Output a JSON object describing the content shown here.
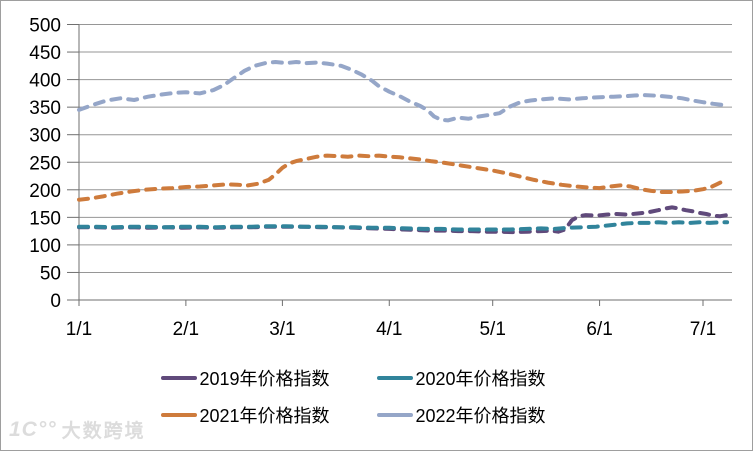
{
  "watermark": {
    "logo_text": "1C°°",
    "brand": "大数跨境"
  },
  "chart_data": {
    "type": "line",
    "title": "",
    "line_style": "dashed",
    "grid": true,
    "legend_position": "bottom",
    "xlabel": "",
    "ylabel": "",
    "x_tick_labels": [
      "1/1",
      "2/1",
      "3/1",
      "4/1",
      "5/1",
      "6/1",
      "7/1"
    ],
    "x_tick_days": [
      1,
      32,
      60,
      91,
      121,
      152,
      182
    ],
    "x_domain_days": [
      1,
      189
    ],
    "ylim": [
      0,
      500
    ],
    "y_step": 50,
    "colors": {
      "grid": "#969696",
      "axis": "#6f6f6f"
    },
    "legend_rows": [
      [
        0,
        1
      ],
      [
        2,
        3
      ]
    ],
    "series": [
      {
        "name": "2019年价格指数",
        "color": "#604A7B",
        "points": [
          [
            1,
            132
          ],
          [
            6,
            132
          ],
          [
            11,
            131
          ],
          [
            16,
            132
          ],
          [
            21,
            131
          ],
          [
            26,
            132
          ],
          [
            31,
            131
          ],
          [
            36,
            132
          ],
          [
            41,
            131
          ],
          [
            46,
            132
          ],
          [
            51,
            132
          ],
          [
            56,
            133
          ],
          [
            61,
            133
          ],
          [
            66,
            133
          ],
          [
            71,
            132
          ],
          [
            76,
            132
          ],
          [
            81,
            131
          ],
          [
            86,
            130
          ],
          [
            91,
            129
          ],
          [
            95,
            128
          ],
          [
            99,
            127
          ],
          [
            103,
            126
          ],
          [
            107,
            126
          ],
          [
            111,
            125
          ],
          [
            115,
            125
          ],
          [
            119,
            124
          ],
          [
            123,
            124
          ],
          [
            127,
            123
          ],
          [
            131,
            124
          ],
          [
            135,
            125
          ],
          [
            138,
            126
          ],
          [
            140,
            124
          ],
          [
            142,
            128
          ],
          [
            144,
            145
          ],
          [
            146,
            152
          ],
          [
            148,
            154
          ],
          [
            151,
            153
          ],
          [
            154,
            155
          ],
          [
            157,
            156
          ],
          [
            160,
            155
          ],
          [
            163,
            157
          ],
          [
            166,
            159
          ],
          [
            169,
            163
          ],
          [
            171,
            166
          ],
          [
            173,
            168
          ],
          [
            175,
            166
          ],
          [
            177,
            163
          ],
          [
            179,
            161
          ],
          [
            181,
            158
          ],
          [
            183,
            156
          ],
          [
            185,
            153
          ],
          [
            187,
            152
          ],
          [
            189,
            154
          ]
        ]
      },
      {
        "name": "2020年价格指数",
        "color": "#31849B",
        "points": [
          [
            1,
            133
          ],
          [
            6,
            133
          ],
          [
            11,
            132
          ],
          [
            16,
            133
          ],
          [
            21,
            133
          ],
          [
            26,
            132
          ],
          [
            31,
            133
          ],
          [
            36,
            133
          ],
          [
            41,
            132
          ],
          [
            46,
            133
          ],
          [
            51,
            133
          ],
          [
            56,
            134
          ],
          [
            61,
            134
          ],
          [
            66,
            133
          ],
          [
            71,
            133
          ],
          [
            76,
            132
          ],
          [
            81,
            132
          ],
          [
            86,
            131
          ],
          [
            91,
            131
          ],
          [
            96,
            130
          ],
          [
            101,
            129
          ],
          [
            106,
            129
          ],
          [
            111,
            128
          ],
          [
            116,
            128
          ],
          [
            121,
            128
          ],
          [
            126,
            128
          ],
          [
            131,
            129
          ],
          [
            135,
            130
          ],
          [
            139,
            129
          ],
          [
            143,
            131
          ],
          [
            147,
            132
          ],
          [
            151,
            133
          ],
          [
            154,
            135
          ],
          [
            157,
            137
          ],
          [
            160,
            139
          ],
          [
            163,
            140
          ],
          [
            166,
            140
          ],
          [
            169,
            141
          ],
          [
            172,
            140
          ],
          [
            175,
            141
          ],
          [
            178,
            140
          ],
          [
            181,
            141
          ],
          [
            184,
            140
          ],
          [
            187,
            141
          ],
          [
            189,
            141
          ]
        ]
      },
      {
        "name": "2021年价格指数",
        "color": "#CE7B3C",
        "points": [
          [
            1,
            182
          ],
          [
            4,
            184
          ],
          [
            8,
            188
          ],
          [
            12,
            193
          ],
          [
            16,
            197
          ],
          [
            20,
            200
          ],
          [
            24,
            202
          ],
          [
            28,
            203
          ],
          [
            32,
            205
          ],
          [
            36,
            206
          ],
          [
            40,
            208
          ],
          [
            44,
            210
          ],
          [
            47,
            209
          ],
          [
            50,
            208
          ],
          [
            53,
            211
          ],
          [
            56,
            218
          ],
          [
            58,
            228
          ],
          [
            60,
            240
          ],
          [
            62,
            248
          ],
          [
            64,
            252
          ],
          [
            67,
            256
          ],
          [
            70,
            260
          ],
          [
            73,
            262
          ],
          [
            76,
            261
          ],
          [
            79,
            260
          ],
          [
            82,
            262
          ],
          [
            85,
            261
          ],
          [
            88,
            262
          ],
          [
            91,
            260
          ],
          [
            94,
            259
          ],
          [
            97,
            257
          ],
          [
            100,
            255
          ],
          [
            103,
            252
          ],
          [
            106,
            250
          ],
          [
            109,
            247
          ],
          [
            112,
            244
          ],
          [
            115,
            241
          ],
          [
            118,
            238
          ],
          [
            121,
            235
          ],
          [
            125,
            230
          ],
          [
            129,
            224
          ],
          [
            133,
            218
          ],
          [
            137,
            213
          ],
          [
            141,
            209
          ],
          [
            145,
            206
          ],
          [
            149,
            204
          ],
          [
            152,
            203
          ],
          [
            155,
            206
          ],
          [
            158,
            208
          ],
          [
            161,
            206
          ],
          [
            164,
            201
          ],
          [
            167,
            198
          ],
          [
            170,
            196
          ],
          [
            173,
            196
          ],
          [
            176,
            197
          ],
          [
            179,
            198
          ],
          [
            182,
            201
          ],
          [
            184,
            204
          ],
          [
            186,
            210
          ],
          [
            189,
            219
          ]
        ]
      },
      {
        "name": "2022年价格指数",
        "color": "#95A6C8",
        "points": [
          [
            1,
            345
          ],
          [
            5,
            354
          ],
          [
            9,
            362
          ],
          [
            13,
            366
          ],
          [
            17,
            363
          ],
          [
            21,
            369
          ],
          [
            25,
            373
          ],
          [
            29,
            376
          ],
          [
            32,
            377
          ],
          [
            36,
            375
          ],
          [
            40,
            381
          ],
          [
            43,
            390
          ],
          [
            46,
            403
          ],
          [
            49,
            416
          ],
          [
            52,
            425
          ],
          [
            55,
            430
          ],
          [
            58,
            432
          ],
          [
            61,
            430
          ],
          [
            64,
            432
          ],
          [
            67,
            430
          ],
          [
            70,
            431
          ],
          [
            73,
            429
          ],
          [
            77,
            425
          ],
          [
            80,
            418
          ],
          [
            83,
            409
          ],
          [
            86,
            398
          ],
          [
            88,
            388
          ],
          [
            91,
            378
          ],
          [
            94,
            370
          ],
          [
            97,
            360
          ],
          [
            100,
            352
          ],
          [
            102,
            345
          ],
          [
            104,
            333
          ],
          [
            106,
            327
          ],
          [
            108,
            326
          ],
          [
            111,
            331
          ],
          [
            114,
            329
          ],
          [
            117,
            333
          ],
          [
            120,
            336
          ],
          [
            123,
            339
          ],
          [
            126,
            351
          ],
          [
            129,
            359
          ],
          [
            132,
            362
          ],
          [
            135,
            364
          ],
          [
            139,
            366
          ],
          [
            143,
            364
          ],
          [
            147,
            366
          ],
          [
            152,
            368
          ],
          [
            156,
            369
          ],
          [
            160,
            370
          ],
          [
            164,
            372
          ],
          [
            168,
            371
          ],
          [
            172,
            369
          ],
          [
            176,
            366
          ],
          [
            179,
            362
          ],
          [
            182,
            359
          ],
          [
            185,
            356
          ],
          [
            189,
            353
          ]
        ]
      }
    ]
  }
}
